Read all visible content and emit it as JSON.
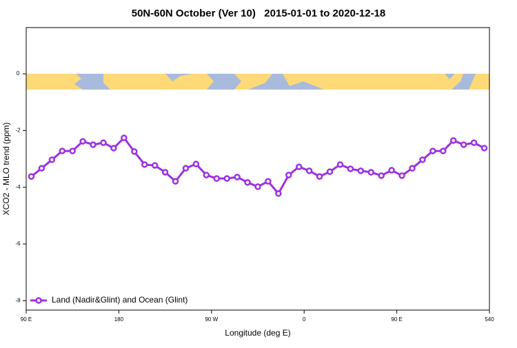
{
  "chart_data": {
    "type": "line",
    "title": "50N-60N October (Ver 10)   2015-01-01 to 2020-12-18",
    "x_label": "Longitude (deg E)",
    "y_label": "XCO2 - MLO trend (ppm)",
    "x": [
      95,
      105,
      115,
      125,
      135,
      145,
      155,
      165,
      175,
      185,
      195,
      205,
      215,
      225,
      235,
      245,
      255,
      265,
      275,
      285,
      295,
      305,
      315,
      325,
      335,
      345,
      355,
      365,
      375,
      385,
      395,
      405,
      415,
      425,
      435,
      445,
      455,
      465,
      475,
      485,
      495,
      505,
      515,
      525,
      535
    ],
    "series": [
      {
        "name": "Land (Nadir&Glint) and Ocean (Glint)",
        "color": "#9b30e0",
        "values": [
          -3.62,
          -3.33,
          -3.03,
          -2.72,
          -2.72,
          -2.38,
          -2.5,
          -2.43,
          -2.62,
          -2.26,
          -2.74,
          -3.2,
          -3.23,
          -3.47,
          -3.79,
          -3.33,
          -3.18,
          -3.57,
          -3.69,
          -3.69,
          -3.64,
          -3.83,
          -3.98,
          -3.79,
          -4.22,
          -3.57,
          -3.28,
          -3.42,
          -3.62,
          -3.45,
          -3.2,
          -3.35,
          -3.42,
          -3.47,
          -3.59,
          -3.4,
          -3.59,
          -3.33,
          -3.03,
          -2.72,
          -2.72,
          -2.35,
          -2.5,
          -2.43,
          -2.62
        ]
      }
    ],
    "xlim": [
      90,
      540
    ],
    "xticks": [
      {
        "value": 90,
        "label": "90 E"
      },
      180,
      {
        "value": 270,
        "label": "90 W"
      },
      {
        "value": 360,
        "label": "0"
      },
      {
        "value": 450,
        "label": "90 E"
      },
      540
    ],
    "ylim": [
      -8.33,
      1.63
    ],
    "yticks": [
      0,
      -2,
      -4,
      -6,
      -8
    ],
    "legend": "lower left"
  }
}
